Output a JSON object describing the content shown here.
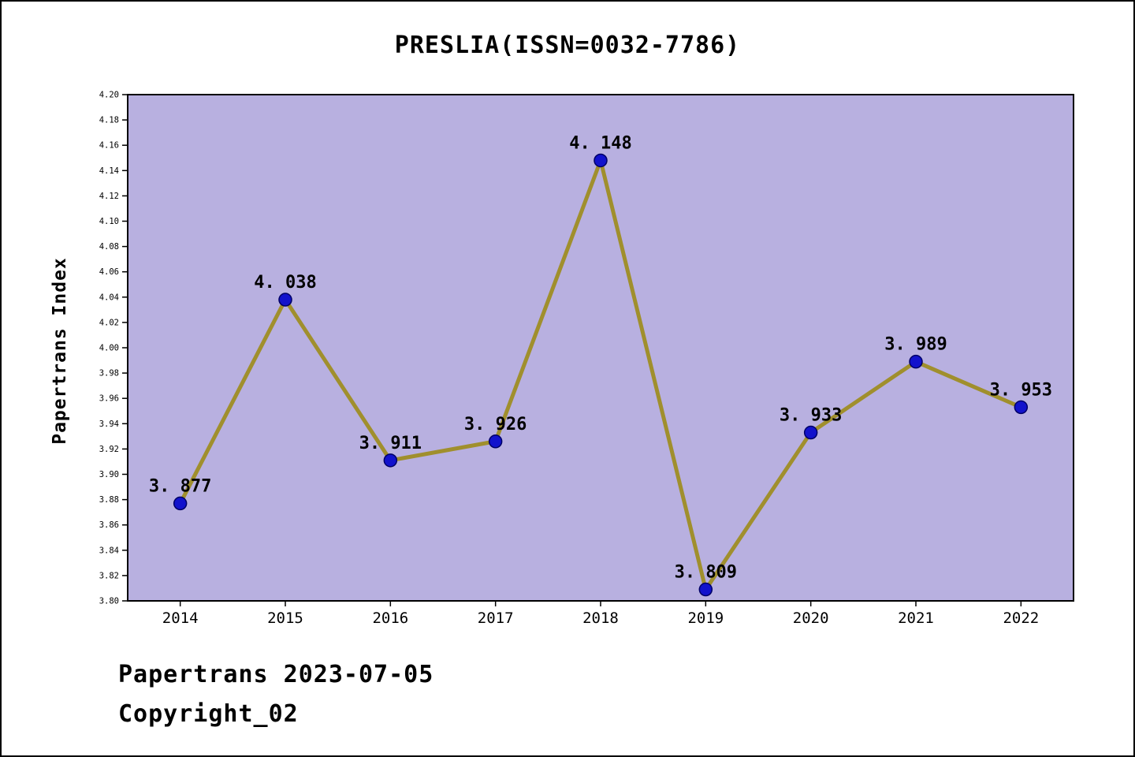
{
  "chart_data": {
    "type": "line",
    "title": "PRESLIA(ISSN=0032-7786)",
    "ylabel": "Papertrans Index",
    "xlabel": "",
    "categories": [
      "2014",
      "2015",
      "2016",
      "2017",
      "2018",
      "2019",
      "2020",
      "2021",
      "2022"
    ],
    "values": [
      3.877,
      4.038,
      3.911,
      3.926,
      4.148,
      3.809,
      3.933,
      3.989,
      3.953
    ],
    "point_labels": [
      "3. 877",
      "4. 038",
      "3. 911",
      "3. 926",
      "4. 148",
      "3. 809",
      "3. 933",
      "3. 989",
      "3. 953"
    ],
    "ylim": [
      3.8,
      4.2
    ],
    "ytick_step": 0.02,
    "grid": false,
    "legend": "none",
    "colors": {
      "plot_bg": "#b8b0e0",
      "line": "#a08f2d",
      "marker": "#1212cc",
      "marker_edge": "#000066",
      "text": "#000000",
      "axis": "#000000"
    }
  },
  "footer": {
    "line1": "Papertrans 2023-07-05",
    "line2": "Copyright_02"
  }
}
